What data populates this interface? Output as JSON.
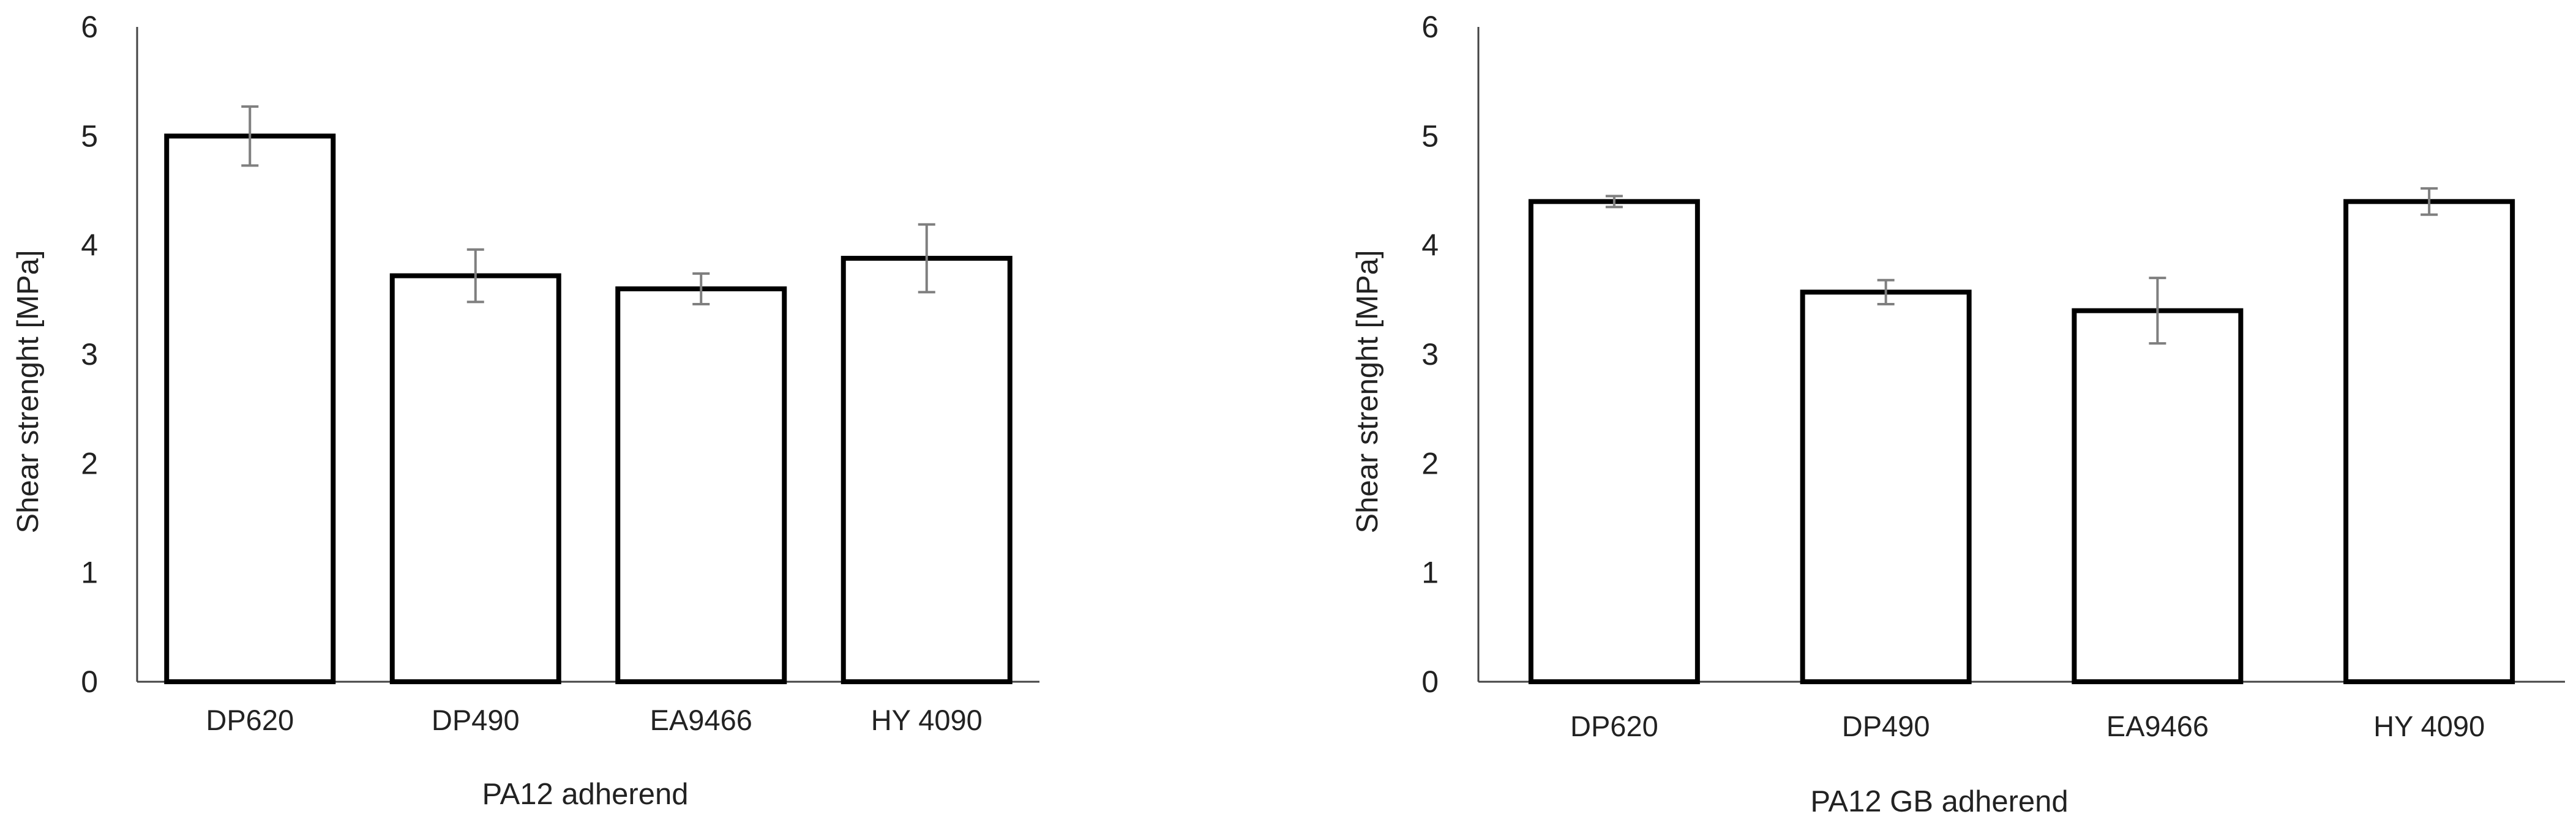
{
  "chart_data": [
    {
      "type": "bar",
      "categories": [
        "DP620",
        "DP490",
        "EA9466",
        "HY 4090"
      ],
      "values": [
        5.0,
        3.72,
        3.6,
        3.88
      ],
      "error": [
        0.27,
        0.24,
        0.14,
        0.31
      ],
      "xlabel": "PA12 adherend",
      "ylabel": "Shear strenght [MPa]",
      "ylim": [
        0,
        6
      ],
      "yticks": [
        0,
        1,
        2,
        3,
        4,
        5,
        6
      ],
      "grid": false,
      "legend": "none",
      "bar_fill": "#ffffff",
      "bar_edge": "#000000",
      "errorbar_color": "#7f7f7f"
    },
    {
      "type": "bar",
      "categories": [
        "DP620",
        "DP490",
        "EA9466",
        "HY 4090"
      ],
      "values": [
        4.4,
        3.57,
        3.4,
        4.4
      ],
      "error": [
        0.05,
        0.11,
        0.3,
        0.12
      ],
      "xlabel": "PA12 GB adherend",
      "ylabel": "Shear strenght [MPa]",
      "ylim": [
        0,
        6
      ],
      "yticks": [
        0,
        1,
        2,
        3,
        4,
        5,
        6
      ],
      "grid": false,
      "legend": "none",
      "bar_fill": "#ffffff",
      "bar_edge": "#000000",
      "errorbar_color": "#7f7f7f"
    }
  ]
}
